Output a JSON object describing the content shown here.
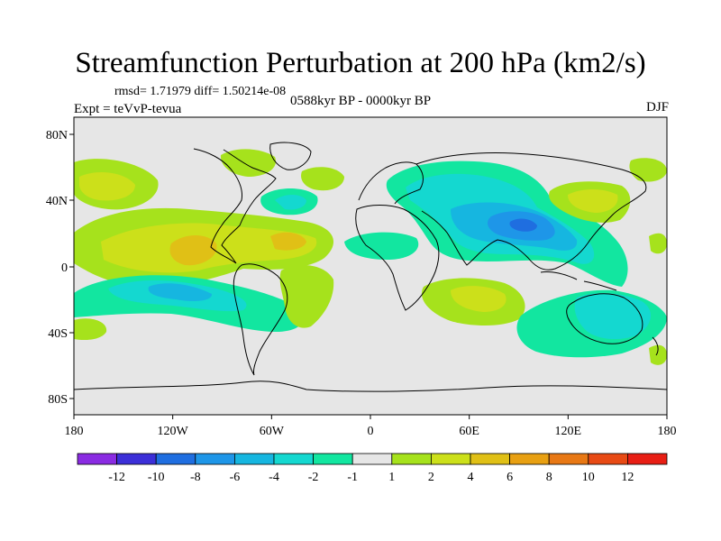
{
  "header": {
    "title": "Streamfunction Perturbation at 200 hPa (km2/s)",
    "stats": "rmsd= 1.71979 diff= 1.50214e-08",
    "experiment": "Expt = teVvP-tevua",
    "period": "0588kyr BP - 0000kyr BP",
    "season": "DJF"
  },
  "axes": {
    "lat_ticks": [
      "80N",
      "40N",
      "0",
      "40S",
      "80S"
    ],
    "lon_ticks": [
      "180",
      "120W",
      "60W",
      "0",
      "60E",
      "120E",
      "180"
    ]
  },
  "colorbar": {
    "labels": [
      "-12",
      "-10",
      "-8",
      "-6",
      "-4",
      "-2",
      "-1",
      "1",
      "2",
      "4",
      "6",
      "8",
      "10",
      "12"
    ],
    "colors": [
      "#8a2be2",
      "#3c2fd8",
      "#1f6ee0",
      "#1e96e8",
      "#16b6e0",
      "#14d8d0",
      "#12e6a0",
      "#e6e6e6",
      "#a6e21c",
      "#cce01a",
      "#e0c016",
      "#e8a012",
      "#e87814",
      "#e84a14",
      "#e81e14"
    ]
  },
  "map_data": {
    "type": "contour-map",
    "projection": "cylindrical-equidistant",
    "lon_range": [
      -180,
      180
    ],
    "lat_range": [
      -90,
      90
    ],
    "features": [
      {
        "region": "North Pacific west of North America",
        "level": "2 to 4"
      },
      {
        "region": "Tropical eastern Pacific / Central America",
        "level": "4 to 6"
      },
      {
        "region": "South Pacific",
        "level": "-4 to -6"
      },
      {
        "region": "Asia / Indian Ocean",
        "level": "-4 to -8"
      },
      {
        "region": "North Atlantic",
        "level": "-2 to -4"
      },
      {
        "region": "Southern Indian Ocean",
        "level": "2 to 4"
      },
      {
        "region": "Australia",
        "level": "-2 to -4"
      },
      {
        "region": "Northwest Pacific",
        "level": "2 to 4"
      }
    ]
  }
}
